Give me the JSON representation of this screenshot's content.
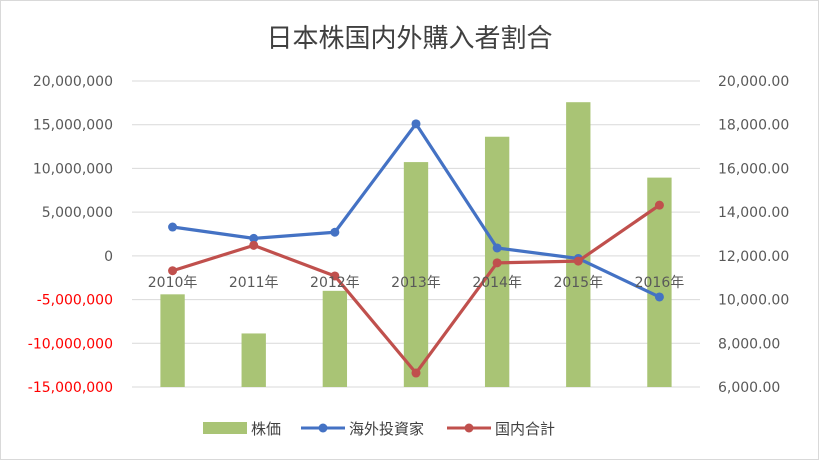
{
  "chart_data": {
    "type": "bar+line",
    "title": "日本株国内外購入者割合",
    "categories": [
      "2010年",
      "2011年",
      "2012年",
      "2013年",
      "2014年",
      "2015年",
      "2016年"
    ],
    "primary_axis": {
      "min": -15000000,
      "max": 20000000,
      "step": 5000000,
      "ticks": [
        "-15,000,000",
        "-10,000,000",
        "-5,000,000",
        "0",
        "5,000,000",
        "10,000,000",
        "15,000,000",
        "20,000,000"
      ],
      "negative_color": "#ff0000"
    },
    "secondary_axis": {
      "min": 6000,
      "max": 20000,
      "step": 2000,
      "ticks": [
        "6,000.00",
        "8,000.00",
        "10,000.00",
        "12,000.00",
        "14,000.00",
        "16,000.00",
        "18,000.00",
        "20,000.00"
      ]
    },
    "series": [
      {
        "name": "株価",
        "type": "bar",
        "axis": "secondary",
        "color": "#a9c475",
        "values": [
          10240,
          8450,
          10400,
          16290,
          17450,
          19030,
          15580
        ]
      },
      {
        "name": "海外投資家",
        "type": "line",
        "axis": "primary",
        "color": "#4472c4",
        "values": [
          3300000,
          2000000,
          2700000,
          15100000,
          900000,
          -300000,
          -4700000
        ]
      },
      {
        "name": "国内合計",
        "type": "line",
        "axis": "primary",
        "color": "#c0504d",
        "values": [
          -1700000,
          1200000,
          -2300000,
          -13400000,
          -800000,
          -600000,
          5800000
        ]
      }
    ],
    "legend_position": "bottom",
    "grid": true
  }
}
